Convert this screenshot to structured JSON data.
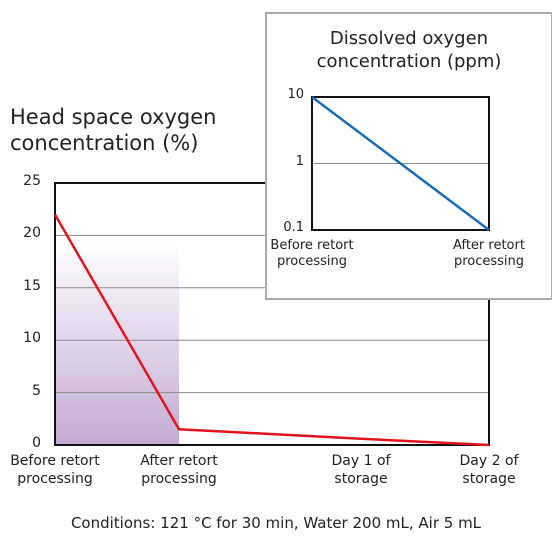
{
  "chart_data": [
    {
      "type": "line",
      "title": "Head space oxygen concentration (%)",
      "categories": [
        "Before retort processing",
        "After retort processing",
        "Day 1 of storage",
        "Day 2 of storage"
      ],
      "series": [
        {
          "name": "Head space oxygen",
          "color": "#e0141e",
          "values": [
            22,
            1.5,
            0.6,
            0
          ]
        }
      ],
      "ylim": [
        0,
        25
      ],
      "yticks": [
        0,
        5,
        10,
        15,
        20,
        25
      ],
      "grid": true,
      "note": "Conditions: 121 °C for 30 min, Water 200 mL, Air 5 mL"
    },
    {
      "type": "line",
      "title": "Dissolved oxygen concentration (ppm)",
      "categories": [
        "Before retort processing",
        "After retort processing"
      ],
      "series": [
        {
          "name": "Dissolved oxygen",
          "color": "#1a6bb5",
          "values": [
            10,
            0.1
          ]
        }
      ],
      "ylim": [
        0.1,
        10
      ],
      "yticks": [
        0.1,
        1,
        10
      ],
      "log_scale": true,
      "grid": true
    }
  ]
}
